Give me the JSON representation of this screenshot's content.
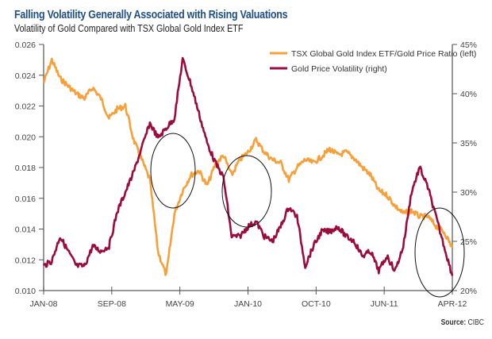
{
  "header": {
    "title": "Falling Volatility Generally Associated with Rising Valuations",
    "subtitle": "Volatility of Gold Compared with TSX Global Gold Index ETF"
  },
  "footer": {
    "source_label": "Source:",
    "source_value": "CIBC"
  },
  "colors": {
    "ratio": "#f7a03a",
    "volatility": "#9b0b3c",
    "axis": "#777777",
    "title": "#1f4e8c"
  },
  "chart_data": {
    "type": "line",
    "title": "Falling Volatility Generally Associated with Rising Valuations",
    "subtitle": "Volatility of Gold Compared with TSX Global Gold Index ETF",
    "xlabel": "",
    "x_range": [
      "JAN-08",
      "APR-12"
    ],
    "x_ticks": [
      "JAN-08",
      "SEP-08",
      "MAY-09",
      "JAN-10",
      "OCT-10",
      "JUN-11",
      "APR-12"
    ],
    "y_left": {
      "label": "",
      "range": [
        0.01,
        0.026
      ],
      "ticks": [
        "0.010",
        "0.012",
        "0.014",
        "0.016",
        "0.018",
        "0.020",
        "0.022",
        "0.024",
        "0.026"
      ]
    },
    "y_right": {
      "label": "",
      "range": [
        20,
        45
      ],
      "ticks": [
        "20%",
        "25%",
        "30%",
        "35%",
        "40%",
        "45%"
      ]
    },
    "grid": false,
    "legend_position": "top-right",
    "x": [
      0,
      0.02,
      0.04,
      0.06,
      0.08,
      0.1,
      0.12,
      0.14,
      0.16,
      0.18,
      0.2,
      0.22,
      0.24,
      0.26,
      0.28,
      0.3,
      0.32,
      0.34,
      0.36,
      0.38,
      0.4,
      0.42,
      0.44,
      0.46,
      0.48,
      0.5,
      0.52,
      0.54,
      0.56,
      0.58,
      0.6,
      0.62,
      0.64,
      0.66,
      0.68,
      0.7,
      0.72,
      0.74,
      0.76,
      0.78,
      0.8,
      0.82,
      0.84,
      0.86,
      0.88,
      0.9,
      0.92,
      0.94,
      0.96,
      0.98,
      1.0
    ],
    "series": [
      {
        "name": "TSX Global Gold Index ETF/Gold Price Ratio (left)",
        "axis": "left",
        "values": [
          0.0235,
          0.025,
          0.0238,
          0.0233,
          0.0228,
          0.0225,
          0.0232,
          0.0225,
          0.0212,
          0.0218,
          0.022,
          0.0198,
          0.0185,
          0.0172,
          0.0125,
          0.011,
          0.015,
          0.0165,
          0.0175,
          0.0178,
          0.0168,
          0.0182,
          0.0188,
          0.0175,
          0.0185,
          0.019,
          0.0198,
          0.019,
          0.0185,
          0.0183,
          0.0172,
          0.018,
          0.0185,
          0.0183,
          0.0187,
          0.0192,
          0.0188,
          0.019,
          0.0186,
          0.018,
          0.0175,
          0.0165,
          0.0162,
          0.0155,
          0.015,
          0.0152,
          0.0148,
          0.0148,
          0.0142,
          0.0138,
          0.0128
        ]
      },
      {
        "name": "Gold Price Volatility (right)",
        "axis": "right",
        "values": [
          22.5,
          23.0,
          25.5,
          24.0,
          22.5,
          22.5,
          24.5,
          24.0,
          24.5,
          28.0,
          30.0,
          32.0,
          34.5,
          37.0,
          35.5,
          36.5,
          37.5,
          43.5,
          41.0,
          38.0,
          35.0,
          33.0,
          31.5,
          25.5,
          25.5,
          26.5,
          27.0,
          25.5,
          25.0,
          26.5,
          28.5,
          27.5,
          22.5,
          24.5,
          26.0,
          26.0,
          26.5,
          25.5,
          25.0,
          23.5,
          24.0,
          22.0,
          23.5,
          22.0,
          24.5,
          30.0,
          32.5,
          30.5,
          27.5,
          24.5,
          21.5
        ]
      }
    ],
    "annotations": [
      "circle around MAY-09 crossover",
      "circle around JAN-10",
      "circle around APR-12"
    ]
  }
}
